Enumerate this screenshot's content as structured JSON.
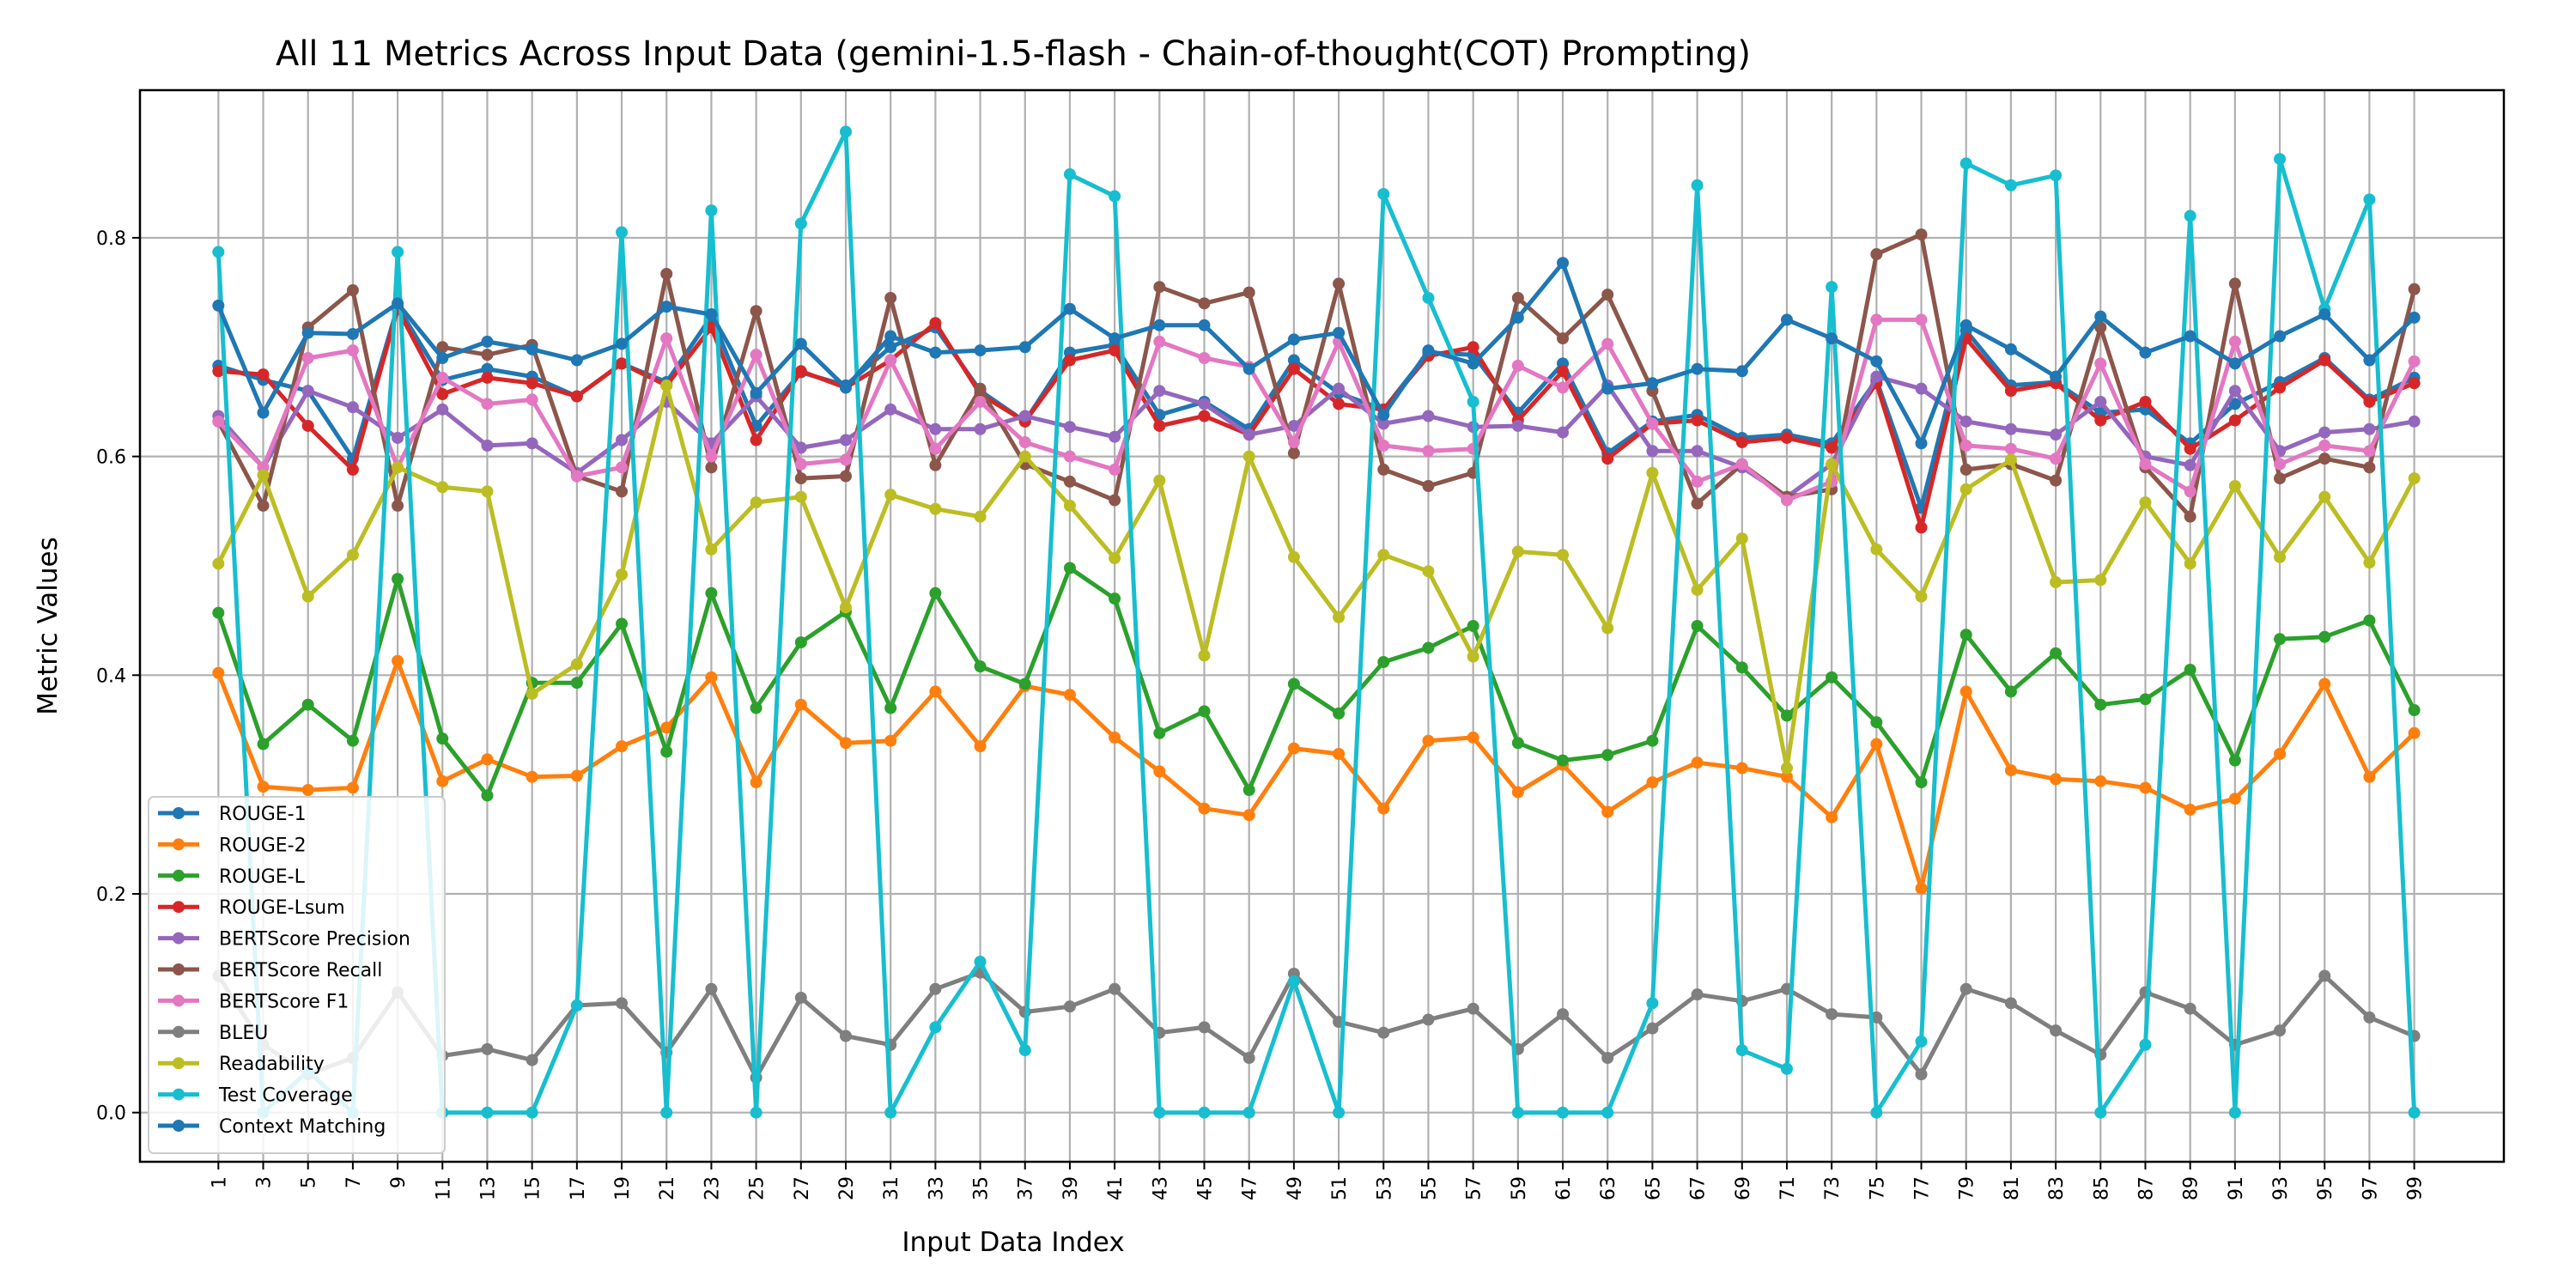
{
  "chart_data": {
    "type": "line",
    "title": "All 11 Metrics Across Input Data (gemini-1.5-flash - Chain-of-thought(COT) Prompting)",
    "xlabel": "Input Data Index",
    "ylabel": "Metric Values",
    "x": [
      1,
      3,
      5,
      7,
      9,
      11,
      13,
      15,
      17,
      19,
      21,
      23,
      25,
      27,
      29,
      31,
      33,
      35,
      37,
      39,
      41,
      43,
      45,
      47,
      49,
      51,
      53,
      55,
      57,
      59,
      61,
      63,
      65,
      67,
      69,
      71,
      73,
      75,
      77,
      79,
      81,
      83,
      85,
      87,
      89,
      91,
      93,
      95,
      97,
      99
    ],
    "xlim": [
      -2.5,
      103
    ],
    "ylim": [
      -0.045,
      0.935
    ],
    "yticks": [
      0.0,
      0.2,
      0.4,
      0.6,
      0.8
    ],
    "ytick_labels": [
      "0.0",
      "0.2",
      "0.4",
      "0.6",
      "0.8"
    ],
    "grid": true,
    "legend_position": "lower-left",
    "series": [
      {
        "name": "ROUGE-1",
        "color": "#1f77b4",
        "values": [
          0.683,
          0.67,
          0.66,
          0.598,
          0.737,
          0.67,
          0.68,
          0.673,
          0.655,
          0.685,
          0.668,
          0.728,
          0.628,
          0.677,
          0.665,
          0.7,
          0.718,
          0.66,
          0.632,
          0.695,
          0.702,
          0.638,
          0.65,
          0.625,
          0.688,
          0.658,
          0.643,
          0.695,
          0.693,
          0.64,
          0.685,
          0.603,
          0.632,
          0.638,
          0.617,
          0.62,
          0.612,
          0.67,
          0.553,
          0.715,
          0.665,
          0.668,
          0.64,
          0.643,
          0.612,
          0.648,
          0.668,
          0.69,
          0.652,
          0.672
        ]
      },
      {
        "name": "ROUGE-2",
        "color": "#ff7f0e",
        "values": [
          0.402,
          0.298,
          0.295,
          0.297,
          0.413,
          0.303,
          0.323,
          0.307,
          0.308,
          0.335,
          0.352,
          0.398,
          0.302,
          0.373,
          0.338,
          0.34,
          0.385,
          0.335,
          0.39,
          0.382,
          0.343,
          0.312,
          0.278,
          0.272,
          0.333,
          0.328,
          0.278,
          0.34,
          0.343,
          0.293,
          0.318,
          0.275,
          0.302,
          0.32,
          0.315,
          0.307,
          0.27,
          0.337,
          0.205,
          0.385,
          0.313,
          0.305,
          0.303,
          0.297,
          0.277,
          0.287,
          0.328,
          0.392,
          0.307,
          0.347
        ]
      },
      {
        "name": "ROUGE-L",
        "color": "#2ca02c",
        "values": [
          0.457,
          0.337,
          0.373,
          0.34,
          0.488,
          0.342,
          0.29,
          0.393,
          0.393,
          0.447,
          0.33,
          0.475,
          0.37,
          0.43,
          0.458,
          0.37,
          0.475,
          0.408,
          0.392,
          0.498,
          0.47,
          0.347,
          0.367,
          0.295,
          0.392,
          0.365,
          0.412,
          0.425,
          0.445,
          0.338,
          0.322,
          0.327,
          0.34,
          0.445,
          0.407,
          0.363,
          0.398,
          0.357,
          0.302,
          0.437,
          0.385,
          0.42,
          0.373,
          0.378,
          0.405,
          0.322,
          0.433,
          0.435,
          0.45,
          0.368
        ]
      },
      {
        "name": "ROUGE-Lsum",
        "color": "#d62728",
        "values": [
          0.678,
          0.675,
          0.628,
          0.588,
          0.735,
          0.657,
          0.672,
          0.667,
          0.655,
          0.685,
          0.665,
          0.718,
          0.615,
          0.678,
          0.663,
          0.688,
          0.722,
          0.657,
          0.632,
          0.688,
          0.697,
          0.628,
          0.637,
          0.62,
          0.68,
          0.648,
          0.643,
          0.692,
          0.7,
          0.633,
          0.678,
          0.598,
          0.63,
          0.633,
          0.613,
          0.617,
          0.608,
          0.667,
          0.535,
          0.708,
          0.66,
          0.667,
          0.633,
          0.65,
          0.607,
          0.633,
          0.663,
          0.688,
          0.65,
          0.667
        ]
      },
      {
        "name": "BERTScore Precision",
        "color": "#9467bd",
        "values": [
          0.637,
          0.59,
          0.66,
          0.645,
          0.617,
          0.643,
          0.61,
          0.612,
          0.585,
          0.615,
          0.65,
          0.612,
          0.655,
          0.608,
          0.615,
          0.643,
          0.625,
          0.625,
          0.637,
          0.627,
          0.618,
          0.66,
          0.648,
          0.62,
          0.628,
          0.662,
          0.63,
          0.637,
          0.627,
          0.628,
          0.622,
          0.665,
          0.605,
          0.605,
          0.59,
          0.563,
          0.593,
          0.673,
          0.662,
          0.632,
          0.625,
          0.62,
          0.65,
          0.6,
          0.592,
          0.66,
          0.605,
          0.622,
          0.625,
          0.632
        ]
      },
      {
        "name": "BERTScore Recall",
        "color": "#8c564b",
        "values": [
          0.632,
          0.555,
          0.718,
          0.752,
          0.555,
          0.7,
          0.693,
          0.702,
          0.582,
          0.568,
          0.767,
          0.59,
          0.733,
          0.58,
          0.582,
          0.745,
          0.592,
          0.662,
          0.593,
          0.577,
          0.56,
          0.755,
          0.74,
          0.75,
          0.603,
          0.758,
          0.588,
          0.573,
          0.585,
          0.745,
          0.708,
          0.748,
          0.66,
          0.557,
          0.593,
          0.563,
          0.57,
          0.785,
          0.803,
          0.588,
          0.593,
          0.578,
          0.718,
          0.59,
          0.545,
          0.758,
          0.58,
          0.598,
          0.59,
          0.753
        ]
      },
      {
        "name": "BERTScore F1",
        "color": "#e377c2",
        "values": [
          0.632,
          0.59,
          0.69,
          0.697,
          0.59,
          0.672,
          0.648,
          0.652,
          0.582,
          0.59,
          0.708,
          0.6,
          0.693,
          0.593,
          0.597,
          0.688,
          0.607,
          0.65,
          0.613,
          0.6,
          0.588,
          0.705,
          0.69,
          0.682,
          0.613,
          0.705,
          0.61,
          0.605,
          0.607,
          0.683,
          0.663,
          0.703,
          0.63,
          0.577,
          0.593,
          0.56,
          0.577,
          0.725,
          0.725,
          0.61,
          0.607,
          0.598,
          0.685,
          0.593,
          0.568,
          0.705,
          0.593,
          0.61,
          0.605,
          0.687
        ]
      },
      {
        "name": "BLEU",
        "color": "#7f7f7f",
        "values": [
          0.125,
          0.062,
          0.035,
          0.05,
          0.11,
          0.052,
          0.058,
          0.048,
          0.098,
          0.1,
          0.055,
          0.113,
          0.032,
          0.105,
          0.07,
          0.062,
          0.113,
          0.128,
          0.092,
          0.097,
          0.113,
          0.073,
          0.078,
          0.05,
          0.127,
          0.083,
          0.073,
          0.085,
          0.095,
          0.058,
          0.09,
          0.05,
          0.077,
          0.108,
          0.102,
          0.113,
          0.09,
          0.087,
          0.035,
          0.113,
          0.1,
          0.075,
          0.053,
          0.11,
          0.095,
          0.062,
          0.075,
          0.125,
          0.087,
          0.07
        ]
      },
      {
        "name": "Readability",
        "color": "#bcbd22",
        "values": [
          0.502,
          0.583,
          0.472,
          0.51,
          0.59,
          0.572,
          0.568,
          0.383,
          0.41,
          0.492,
          0.665,
          0.515,
          0.558,
          0.563,
          0.462,
          0.565,
          0.552,
          0.545,
          0.6,
          0.555,
          0.507,
          0.578,
          0.418,
          0.6,
          0.508,
          0.453,
          0.51,
          0.495,
          0.417,
          0.513,
          0.51,
          0.443,
          0.585,
          0.478,
          0.525,
          0.315,
          0.593,
          0.515,
          0.472,
          0.57,
          0.597,
          0.485,
          0.487,
          0.558,
          0.502,
          0.573,
          0.508,
          0.563,
          0.503,
          0.58
        ]
      },
      {
        "name": "Test Coverage",
        "color": "#17becf",
        "values": [
          0.787,
          0.0,
          0.038,
          0.0,
          0.787,
          0.0,
          0.0,
          0.0,
          0.098,
          0.805,
          0.0,
          0.825,
          0.0,
          0.813,
          0.897,
          0.0,
          0.078,
          0.138,
          0.057,
          0.858,
          0.838,
          0.0,
          0.0,
          0.0,
          0.12,
          0.0,
          0.84,
          0.745,
          0.65,
          0.0,
          0.0,
          0.0,
          0.1,
          0.848,
          0.057,
          0.04,
          0.755,
          0.0,
          0.065,
          0.868,
          0.848,
          0.857,
          0.0,
          0.062,
          0.82,
          0.0,
          0.872,
          0.735,
          0.835,
          0.0
        ]
      },
      {
        "name": "Context Matching",
        "color": "#1f77b4",
        "values": [
          0.738,
          0.64,
          0.713,
          0.712,
          0.74,
          0.69,
          0.705,
          0.698,
          0.688,
          0.703,
          0.737,
          0.73,
          0.658,
          0.703,
          0.663,
          0.71,
          0.695,
          0.697,
          0.7,
          0.735,
          0.708,
          0.72,
          0.72,
          0.68,
          0.707,
          0.713,
          0.638,
          0.697,
          0.685,
          0.727,
          0.777,
          0.662,
          0.667,
          0.68,
          0.678,
          0.725,
          0.708,
          0.687,
          0.612,
          0.72,
          0.698,
          0.673,
          0.728,
          0.695,
          0.71,
          0.685,
          0.71,
          0.73,
          0.688,
          0.727
        ]
      }
    ]
  }
}
